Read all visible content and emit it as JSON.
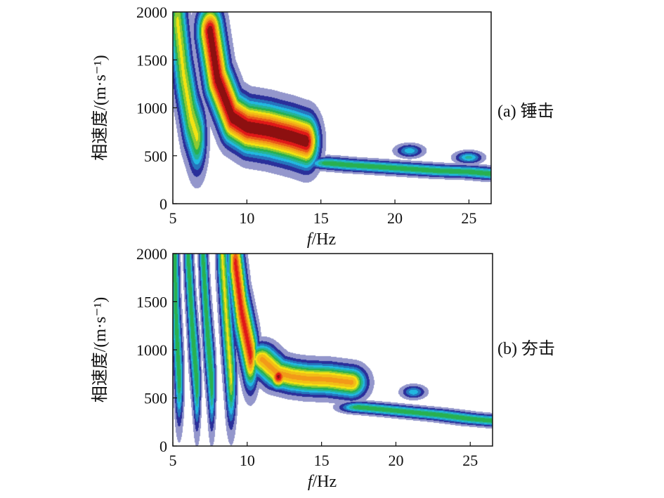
{
  "chart_data": [
    {
      "type": "heatmap",
      "panel_label": "(a) 锤击",
      "xlabel_italic": "f",
      "xlabel_rest": "/Hz",
      "ylabel": "相速度/(m·s⁻¹)",
      "xlim": [
        5,
        26.5
      ],
      "ylim": [
        0,
        2000
      ],
      "xticks": [
        5,
        10,
        15,
        20,
        25
      ],
      "yticks": [
        0,
        500,
        1000,
        1500,
        2000
      ],
      "colormap": [
        "#ffffff",
        "#2a2f9a",
        "#22b8e0",
        "#28b050",
        "#f2e313",
        "#f29a18",
        "#e01818",
        "#3a0808"
      ],
      "grid": false,
      "features": [
        {
          "kind": "ridge",
          "f": [
            5.3,
            5.7,
            6.2,
            6.6
          ],
          "v": [
            1900,
            1350,
            900,
            700
          ],
          "amp": 0.55,
          "width_f": 0.55,
          "width_v": 330
        },
        {
          "kind": "ridge",
          "f": [
            7.5,
            8.0,
            9.0,
            10.0,
            11.5,
            13.0,
            14.0
          ],
          "v": [
            1800,
            1300,
            900,
            800,
            760,
            700,
            650
          ],
          "amp": 0.95,
          "width_f": 0.75,
          "width_v": 240
        },
        {
          "kind": "ridge",
          "f": [
            15.5,
            17.0,
            19.0,
            21.0,
            23.0,
            25.0,
            26.5
          ],
          "v": [
            420,
            400,
            380,
            360,
            340,
            330,
            310
          ],
          "amp": 0.45,
          "width_f": 1.2,
          "width_v": 55
        },
        {
          "kind": "blob",
          "f": 16.8,
          "v": 400,
          "amp": 0.45,
          "width_f": 1.0,
          "width_v": 45
        },
        {
          "kind": "blob",
          "f": 21.0,
          "v": 550,
          "amp": 0.3,
          "width_f": 0.8,
          "width_v": 60
        },
        {
          "kind": "blob",
          "f": 25.0,
          "v": 480,
          "amp": 0.35,
          "width_f": 0.8,
          "width_v": 55
        }
      ]
    },
    {
      "type": "heatmap",
      "panel_label": "(b) 夯击",
      "xlabel_italic": "f",
      "xlabel_rest": "/Hz",
      "ylabel": "相速度/(m·s⁻¹)",
      "xlim": [
        5,
        26.5
      ],
      "ylim": [
        0,
        2000
      ],
      "xticks": [
        5,
        10,
        15,
        20,
        25
      ],
      "yticks": [
        0,
        500,
        1000,
        1500,
        2000
      ],
      "colormap": [
        "#ffffff",
        "#2a2f9a",
        "#22b8e0",
        "#28b050",
        "#f2e313",
        "#f29a18",
        "#e01818",
        "#3a0808"
      ],
      "grid": false,
      "features": [
        {
          "kind": "ridge",
          "f": [
            5.1,
            5.2,
            5.4
          ],
          "v": [
            2000,
            1300,
            700
          ],
          "amp": 0.45,
          "width_f": 0.25,
          "width_v": 420
        },
        {
          "kind": "ridge",
          "f": [
            6.0,
            6.3,
            6.6
          ],
          "v": [
            2000,
            1200,
            650
          ],
          "amp": 0.45,
          "width_f": 0.22,
          "width_v": 420
        },
        {
          "kind": "ridge",
          "f": [
            7.0,
            7.3,
            7.6
          ],
          "v": [
            2000,
            1200,
            650
          ],
          "amp": 0.45,
          "width_f": 0.22,
          "width_v": 420
        },
        {
          "kind": "ridge",
          "f": [
            8.3,
            8.6,
            8.9
          ],
          "v": [
            2000,
            1300,
            700
          ],
          "amp": 0.55,
          "width_f": 0.3,
          "width_v": 420
        },
        {
          "kind": "ridge",
          "f": [
            9.2,
            9.6,
            10.2
          ],
          "v": [
            1900,
            1400,
            950
          ],
          "amp": 0.85,
          "width_f": 0.45,
          "width_v": 300
        },
        {
          "kind": "ridge",
          "f": [
            11.0,
            12.0,
            13.0,
            14.0,
            15.5,
            17.0
          ],
          "v": [
            900,
            760,
            720,
            700,
            690,
            660
          ],
          "amp": 0.7,
          "width_f": 0.9,
          "width_v": 140
        },
        {
          "kind": "blob",
          "f": 12.1,
          "v": 720,
          "amp": 0.92,
          "width_f": 0.55,
          "width_v": 110
        },
        {
          "kind": "ridge",
          "f": [
            17.5,
            19.0,
            21.0,
            23.0,
            25.0,
            26.5
          ],
          "v": [
            400,
            380,
            350,
            320,
            280,
            260
          ],
          "amp": 0.45,
          "width_f": 1.1,
          "width_v": 50
        },
        {
          "kind": "blob",
          "f": 21.2,
          "v": 560,
          "amp": 0.3,
          "width_f": 0.7,
          "width_v": 60
        },
        {
          "kind": "blob",
          "f": 18.8,
          "v": 380,
          "amp": 0.42,
          "width_f": 0.9,
          "width_v": 45
        },
        {
          "kind": "blob",
          "f": 23.0,
          "v": 330,
          "amp": 0.4,
          "width_f": 0.8,
          "width_v": 45
        }
      ]
    }
  ]
}
